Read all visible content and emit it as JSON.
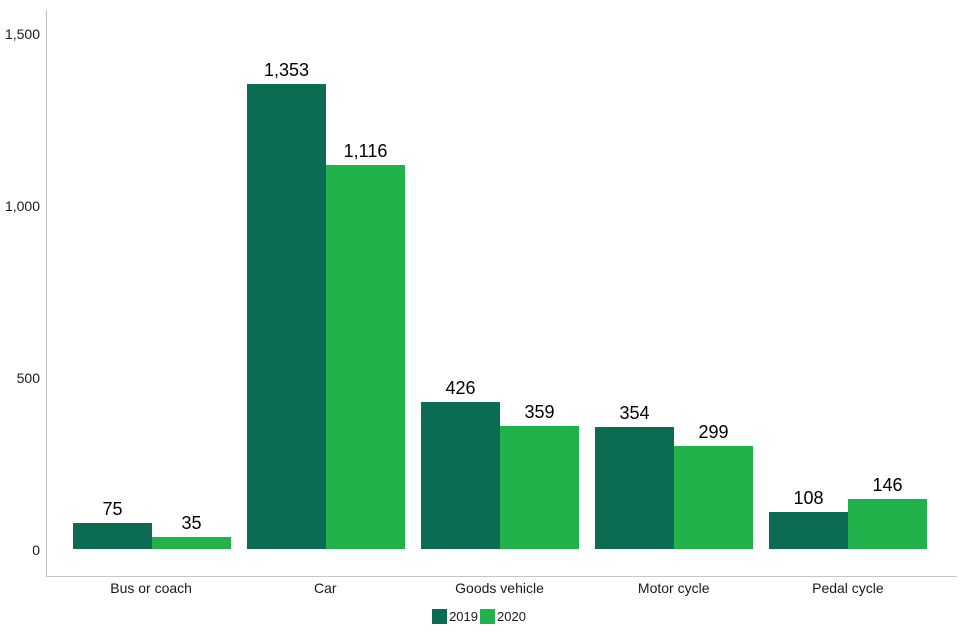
{
  "chart_data": {
    "type": "bar",
    "categories": [
      "Bus or coach",
      "Car",
      "Goods vehicle",
      "Motor cycle",
      "Pedal cycle"
    ],
    "series": [
      {
        "name": "2019",
        "color": "#0c6b53",
        "values": [
          75,
          1353,
          426,
          354,
          108
        ]
      },
      {
        "name": "2020",
        "color": "#22b24c",
        "values": [
          35,
          1116,
          359,
          299,
          146
        ]
      }
    ],
    "value_labels": [
      [
        "75",
        "1,353",
        "426",
        "354",
        "108"
      ],
      [
        "35",
        "1,116",
        "359",
        "299",
        "146"
      ]
    ],
    "y_ticks": [
      {
        "label": "0",
        "value": 0
      },
      {
        "label": "500",
        "value": 500
      },
      {
        "label": "1,000",
        "value": 1000
      },
      {
        "label": "1,500",
        "value": 1500
      }
    ],
    "ylim": [
      0,
      1570
    ],
    "grid": false,
    "legend_position": "bottom",
    "title": "",
    "xlabel": "",
    "ylabel": ""
  },
  "colors": {
    "axis_line": "#c6c6c6",
    "text": "#000000",
    "background": "#ffffff",
    "series_2019": "#0c6b53",
    "series_2020": "#22b24c"
  }
}
